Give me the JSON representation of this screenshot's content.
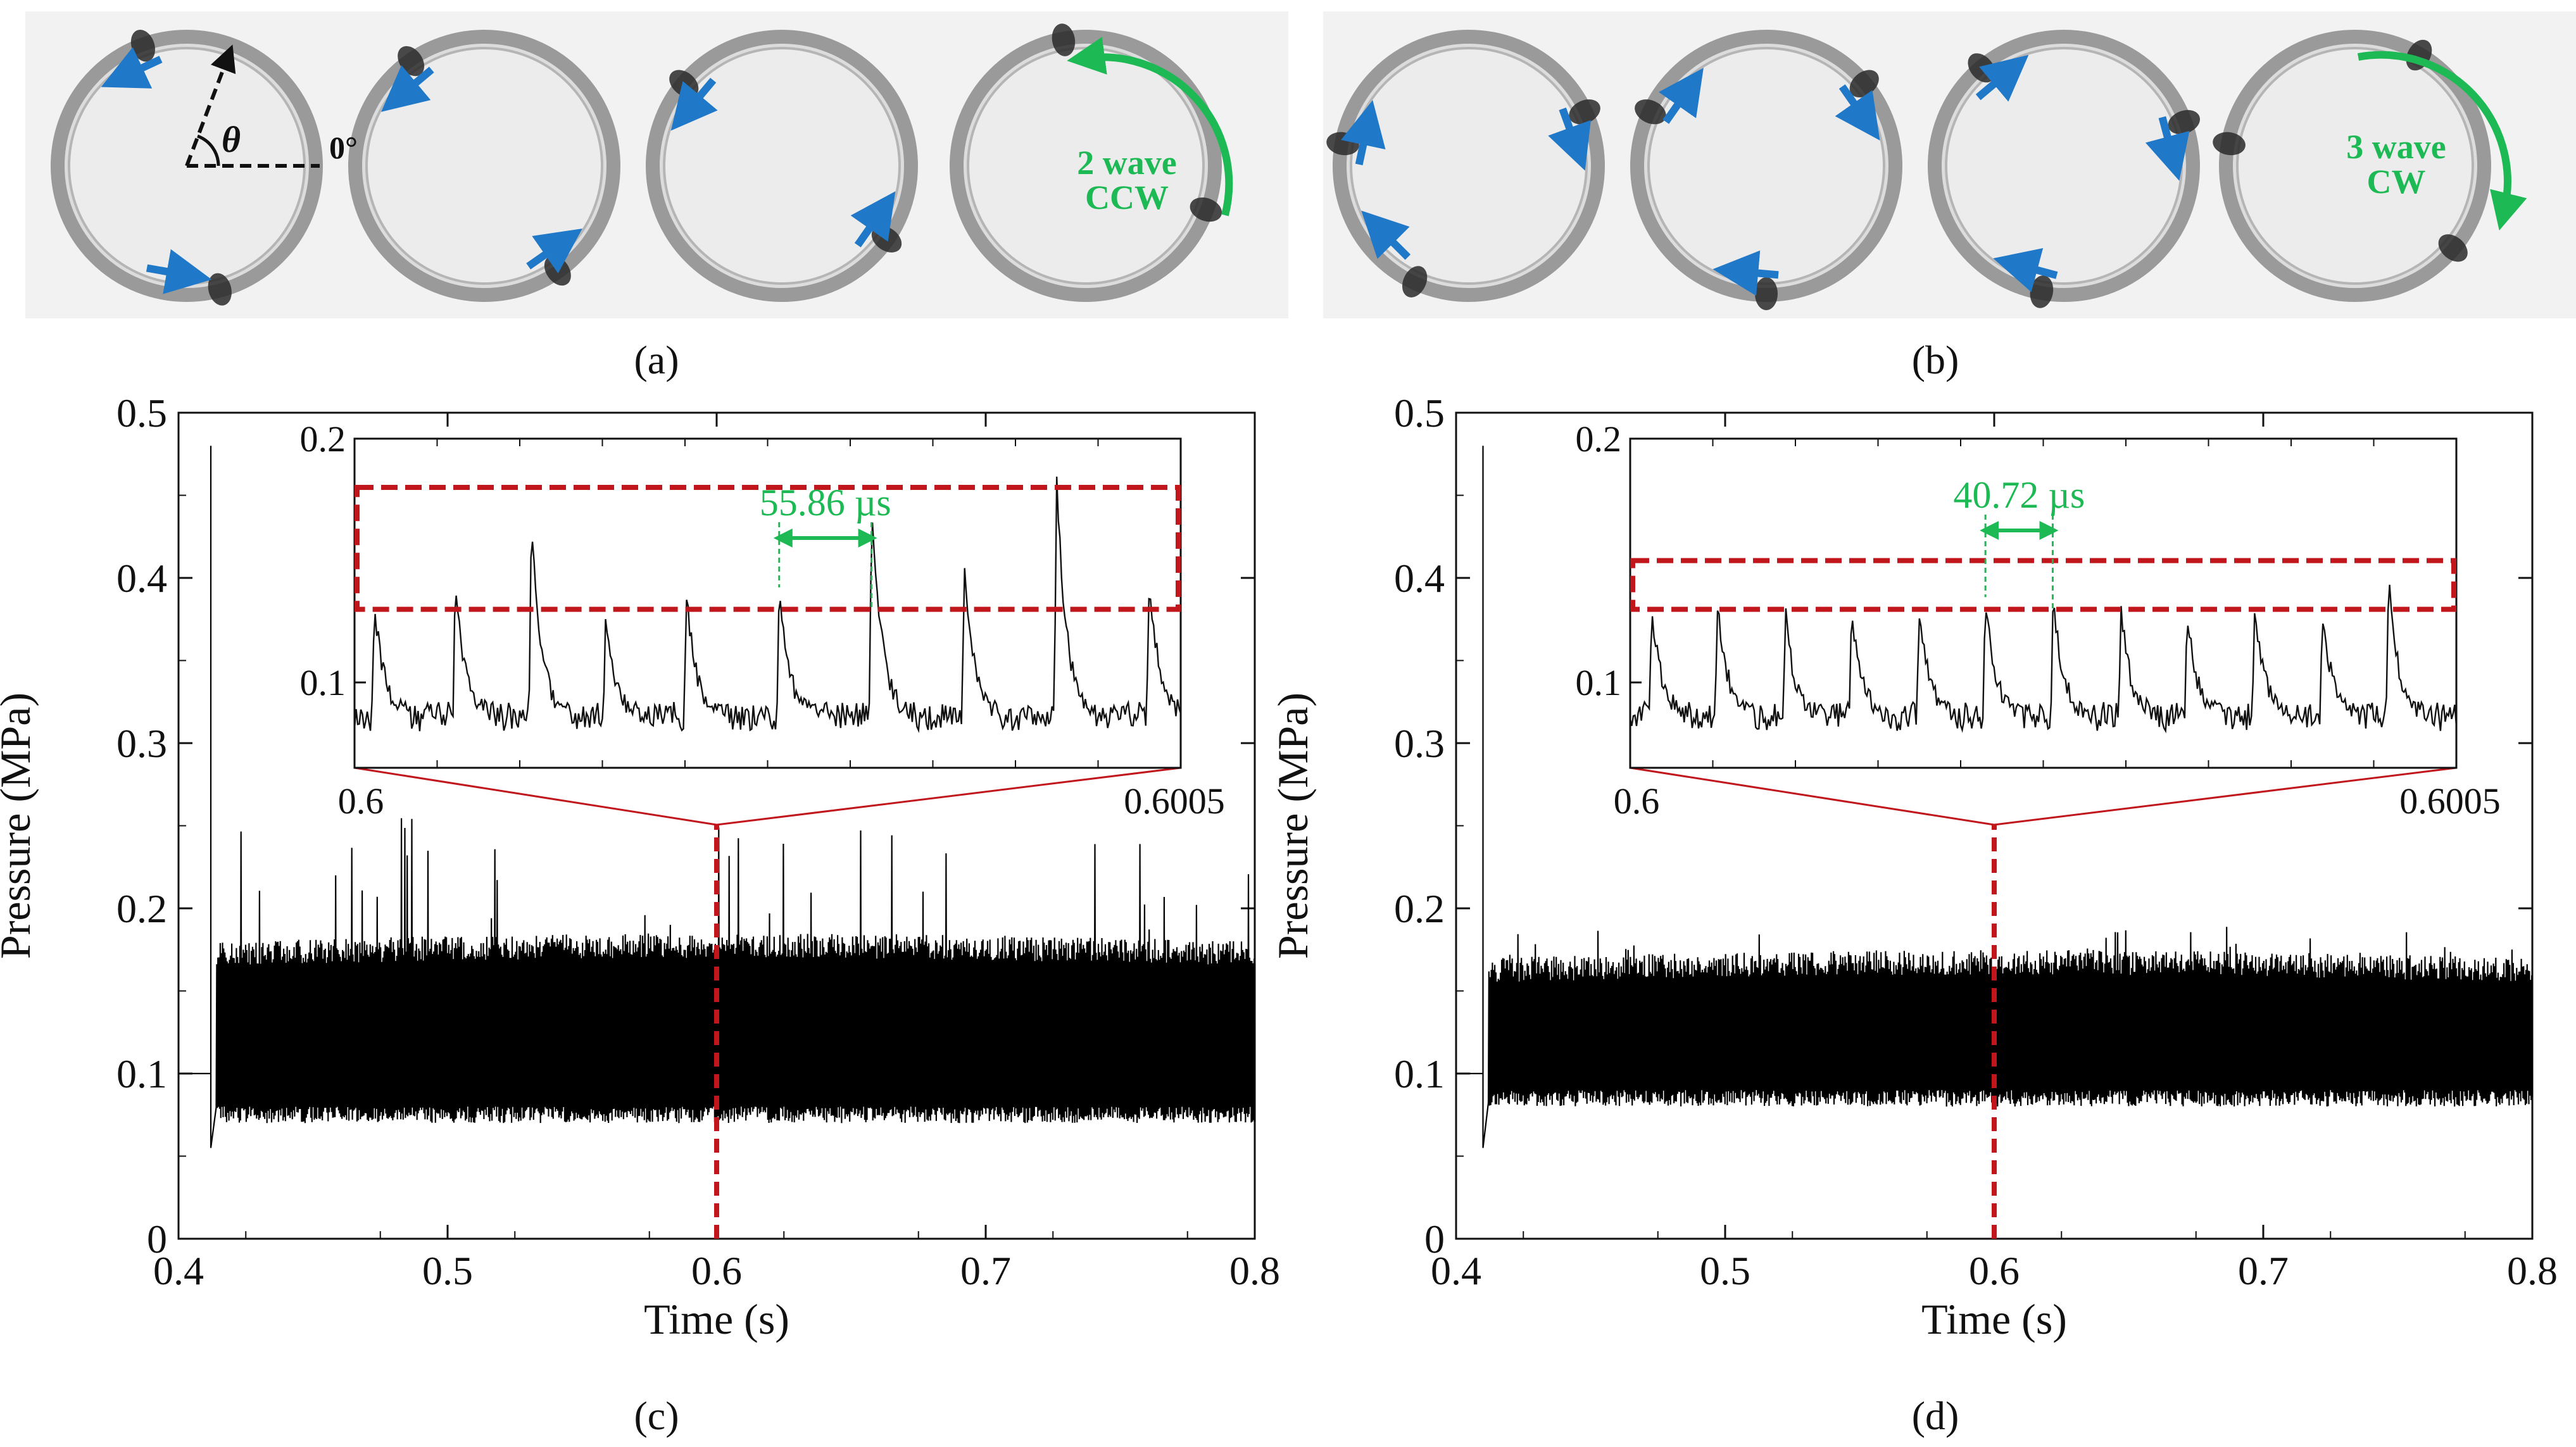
{
  "panel_labels": {
    "a": "(a)",
    "b": "(b)",
    "c": "(c)",
    "d": "(d)"
  },
  "photos": {
    "a": {
      "angle_symbol": "θ",
      "zero_label": "0°",
      "wave_line1": "2 wave",
      "wave_line2": "CCW",
      "wave_color": "#1db954",
      "arrow_color": "#1f78c8"
    },
    "b": {
      "wave_line1": "3 wave",
      "wave_line2": "CW",
      "wave_color": "#1db954",
      "arrow_color": "#1f78c8"
    }
  },
  "chart_data": [
    {
      "panel": "c",
      "type": "line",
      "xlabel": "Time (s)",
      "ylabel": "Pressure (MPa)",
      "xlim": [
        0.4,
        0.8
      ],
      "ylim": [
        0,
        0.5
      ],
      "xticks": [
        "0.4",
        "0.5",
        "0.6",
        "0.7",
        "0.8"
      ],
      "yticks": [
        "0",
        "0.1",
        "0.2",
        "0.3",
        "0.4",
        "0.5"
      ],
      "baseline_before_ignition": 0.1,
      "ignition_time": 0.412,
      "ignition_spike_peak": 0.48,
      "signal_band_mean": [
        0.1,
        0.11
      ],
      "signal_band_range": [
        0.07,
        0.16
      ],
      "peak_max": 0.25,
      "marker_time": 0.6,
      "inset": {
        "xlim": [
          0.6,
          0.6005
        ],
        "ylim": [
          0.065,
          0.2
        ],
        "xticks": [
          "0.6",
          "0.6005"
        ],
        "yticks": [
          "0.1",
          "0.2"
        ],
        "interval_label": "55.86 µs",
        "period_s": 5.586e-05,
        "peak_times": [
          0.600012,
          0.600061,
          0.600107,
          0.600152,
          0.600201,
          0.600257,
          0.600313,
          0.600369,
          0.600425,
          0.600481
        ],
        "peak_values": [
          0.133,
          0.142,
          0.166,
          0.128,
          0.135,
          0.139,
          0.175,
          0.146,
          0.182,
          0.144
        ],
        "highlight_box_y": [
          0.13,
          0.18
        ],
        "colors": {
          "highlight": "#c0161c",
          "interval": "#1db954"
        }
      }
    },
    {
      "panel": "d",
      "type": "line",
      "xlabel": "Time (s)",
      "ylabel": "Pressure (MPa)",
      "xlim": [
        0.4,
        0.8
      ],
      "ylim": [
        0,
        0.5
      ],
      "xticks": [
        "0.4",
        "0.5",
        "0.6",
        "0.7",
        "0.8"
      ],
      "yticks": [
        "0",
        "0.1",
        "0.2",
        "0.3",
        "0.4",
        "0.5"
      ],
      "baseline_before_ignition": 0.1,
      "ignition_time": 0.41,
      "ignition_spike_peak": 0.48,
      "signal_band_mean": [
        0.1,
        0.115
      ],
      "signal_band_range": [
        0.08,
        0.15
      ],
      "peak_max": 0.18,
      "marker_time": 0.6,
      "inset": {
        "xlim": [
          0.6,
          0.6005
        ],
        "ylim": [
          0.065,
          0.2
        ],
        "xticks": [
          "0.6",
          "0.6005"
        ],
        "yticks": [
          "0.1",
          "0.2"
        ],
        "interval_label": "40.72 µs",
        "period_s": 4.072e-05,
        "peak_times": [
          0.600013,
          0.600053,
          0.600094,
          0.600134,
          0.600175,
          0.600215,
          0.600256,
          0.600297,
          0.600337,
          0.600378,
          0.600419,
          0.600459
        ],
        "peak_values": [
          0.13,
          0.133,
          0.128,
          0.131,
          0.129,
          0.135,
          0.136,
          0.13,
          0.128,
          0.132,
          0.129,
          0.142
        ],
        "highlight_box_y": [
          0.13,
          0.15
        ],
        "colors": {
          "highlight": "#c0161c",
          "interval": "#1db954"
        }
      }
    }
  ]
}
